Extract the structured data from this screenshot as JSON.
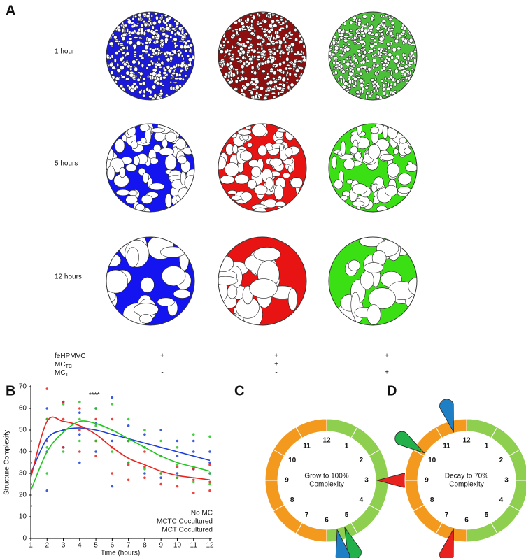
{
  "panel_labels": [
    "A",
    "B",
    "C",
    "D"
  ],
  "panel_a": {
    "rows": [
      "1 hour",
      "5 hours",
      "12 hours"
    ],
    "conditions": [
      {
        "base": "feHPMVC"
      },
      {
        "base": "MC",
        "sub": "TC"
      },
      {
        "base": "MC",
        "sub": "T"
      }
    ],
    "signs": [
      [
        "+",
        "+",
        "+"
      ],
      [
        "-",
        "+",
        "-"
      ],
      [
        "-",
        "-",
        "+"
      ]
    ]
  },
  "chart_data": {
    "type": "line",
    "xlabel": "Time (hours)",
    "ylabel": "Structure Complexity",
    "annotation": "****",
    "x": [
      1,
      2,
      3,
      4,
      5,
      6,
      7,
      8,
      9,
      10,
      11,
      12
    ],
    "xlim": [
      1,
      12
    ],
    "ylim": [
      0,
      70
    ],
    "xticks": [
      1,
      2,
      3,
      4,
      5,
      6,
      7,
      8,
      9,
      10,
      11,
      12
    ],
    "yticks": [
      0,
      10,
      20,
      30,
      40,
      50,
      60,
      70
    ],
    "series": [
      {
        "name": "No MC",
        "color": "#1a3fd6",
        "values": [
          30,
          46,
          50,
          51,
          50,
          48,
          46,
          44,
          42,
          40,
          38,
          36
        ],
        "points": {
          "x": [
            1,
            1,
            1,
            2,
            2,
            2,
            3,
            3,
            3,
            4,
            4,
            4,
            5,
            5,
            5,
            6,
            6,
            6,
            7,
            7,
            7,
            8,
            8,
            8,
            9,
            9,
            9,
            10,
            10,
            10,
            11,
            11,
            11,
            12,
            12,
            12
          ],
          "y": [
            30,
            35,
            45,
            22,
            40,
            60,
            42,
            50,
            63,
            35,
            48,
            58,
            40,
            53,
            60,
            24,
            45,
            65,
            35,
            45,
            52,
            30,
            42,
            48,
            28,
            38,
            50,
            30,
            38,
            45,
            32,
            40,
            45,
            30,
            35,
            40
          ]
        }
      },
      {
        "name": "MCTC Cocultured",
        "color": "#e8231f",
        "values": [
          28,
          54,
          54,
          52,
          48,
          42,
          37,
          34,
          31,
          29,
          28,
          27
        ],
        "points": {
          "x": [
            1,
            1,
            1,
            2,
            2,
            2,
            3,
            3,
            3,
            4,
            4,
            4,
            5,
            5,
            5,
            6,
            6,
            6,
            7,
            7,
            7,
            8,
            8,
            8,
            9,
            9,
            9,
            10,
            10,
            10,
            11,
            11,
            11,
            12,
            12,
            12
          ],
          "y": [
            15,
            25,
            40,
            45,
            55,
            69,
            42,
            55,
            63,
            40,
            50,
            60,
            38,
            45,
            55,
            30,
            42,
            55,
            27,
            34,
            45,
            28,
            33,
            40,
            25,
            30,
            38,
            24,
            28,
            33,
            21,
            27,
            32,
            22,
            26,
            34
          ]
        }
      },
      {
        "name": "MCT Cocultured",
        "color": "#22c41e",
        "values": [
          22,
          40,
          49,
          54,
          53,
          50,
          46,
          42,
          38,
          35,
          33,
          31
        ],
        "points": {
          "x": [
            1,
            1,
            1,
            2,
            2,
            2,
            3,
            3,
            3,
            4,
            4,
            4,
            5,
            5,
            5,
            6,
            6,
            6,
            7,
            7,
            7,
            8,
            8,
            8,
            9,
            9,
            9,
            10,
            10,
            10,
            11,
            11,
            11,
            12,
            12,
            12
          ],
          "y": [
            0,
            20,
            30,
            30,
            42,
            55,
            40,
            50,
            62,
            45,
            55,
            63,
            45,
            52,
            60,
            40,
            50,
            62,
            35,
            45,
            55,
            32,
            42,
            50,
            30,
            38,
            45,
            28,
            34,
            42,
            26,
            33,
            48,
            25,
            30,
            47
          ]
        }
      }
    ]
  },
  "clocks": [
    {
      "numbers": [
        "12",
        "1",
        "2",
        "3",
        "4",
        "5",
        "6",
        "7",
        "8",
        "9",
        "10",
        "11"
      ],
      "center_text": [
        "Grow to 100%",
        "Complexity"
      ]
    },
    {
      "numbers": [
        "12",
        "1",
        "2",
        "3",
        "4",
        "5",
        "6",
        "7",
        "8",
        "9",
        "10",
        "11"
      ],
      "center_text": [
        "Decay to 70%",
        "Complexity"
      ]
    }
  ]
}
